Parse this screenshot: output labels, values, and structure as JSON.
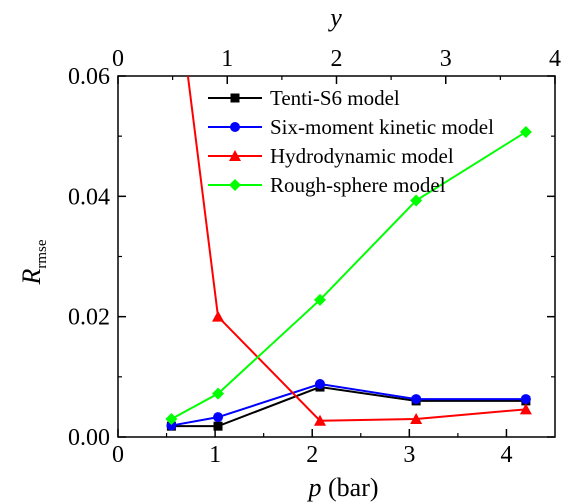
{
  "chart_data": {
    "type": "line",
    "title": "",
    "xlabel_var": "p",
    "xlabel_unit": " (bar)",
    "x2label": "y",
    "ylabel_var": "R",
    "ylabel_sub": "rmse",
    "xlim": [
      0,
      4.5
    ],
    "ylim": [
      0,
      0.06
    ],
    "x2lim": [
      0,
      4
    ],
    "x_ticks": [
      "0",
      "1",
      "2",
      "3",
      "4"
    ],
    "x2_ticks": [
      "0",
      "1",
      "2",
      "3",
      "4"
    ],
    "y_ticks": [
      "0.00",
      "0.02",
      "0.04",
      "0.06"
    ],
    "legend_position": "top-right",
    "grid": false,
    "series": [
      {
        "name": "Tenti-S6 model",
        "color": "#000000",
        "marker": "square",
        "x": [
          0.55,
          1.03,
          2.08,
          3.07,
          4.2
        ],
        "y": [
          0.0018,
          0.0018,
          0.0083,
          0.006,
          0.006
        ]
      },
      {
        "name": "Six-moment kinetic model",
        "color": "#0000ff",
        "marker": "circle",
        "x": [
          0.55,
          1.03,
          2.08,
          3.07,
          4.2
        ],
        "y": [
          0.0019,
          0.0033,
          0.0088,
          0.0063,
          0.0063
        ]
      },
      {
        "name": "Hydrodynamic model",
        "color": "#ff0000",
        "marker": "triangle",
        "x": [
          0.72,
          1.03,
          2.08,
          3.07,
          4.2
        ],
        "y": [
          0.06,
          0.02,
          0.0027,
          0.003,
          0.0046
        ]
      },
      {
        "name": "Rough-sphere model",
        "color": "#00ff00",
        "marker": "diamond",
        "x": [
          0.55,
          1.03,
          2.08,
          3.07,
          4.2
        ],
        "y": [
          0.003,
          0.0072,
          0.0228,
          0.0393,
          0.0507
        ]
      }
    ]
  }
}
